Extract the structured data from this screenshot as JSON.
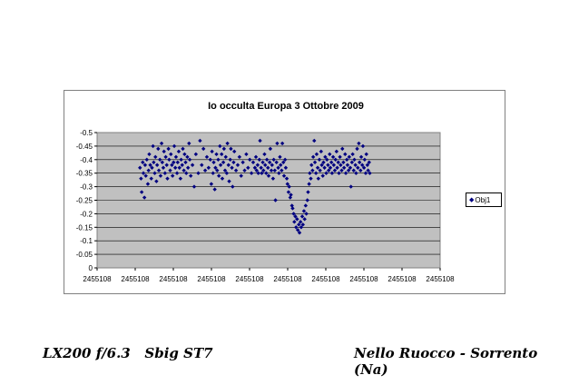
{
  "chart_data": {
    "type": "scatter",
    "title": "Io occulta Europa 3 Ottobre 2009",
    "y_ticks": [
      "-0.5",
      "-0.45",
      "-0.4",
      "-0.35",
      "-0.3",
      "-0.25",
      "-0.2",
      "-0.15",
      "-0.1",
      "-0.05",
      "0"
    ],
    "x_ticks": [
      "2455108",
      "2455108",
      "2455108",
      "2455108",
      "2455108",
      "2455108",
      "2455108",
      "2455108",
      "2455108",
      "2455108"
    ],
    "ylim": [
      -0.5,
      0
    ],
    "xlim": [
      0,
      1
    ],
    "grid": true,
    "legend_position": "right",
    "series": [
      {
        "name": "Obj1",
        "color": "#000080",
        "marker": "diamond",
        "points": [
          [
            0.125,
            -0.37
          ],
          [
            0.128,
            -0.33
          ],
          [
            0.13,
            -0.28
          ],
          [
            0.133,
            -0.39
          ],
          [
            0.135,
            -0.35
          ],
          [
            0.138,
            -0.26
          ],
          [
            0.14,
            -0.38
          ],
          [
            0.142,
            -0.34
          ],
          [
            0.145,
            -0.4
          ],
          [
            0.148,
            -0.31
          ],
          [
            0.15,
            -0.36
          ],
          [
            0.152,
            -0.42
          ],
          [
            0.155,
            -0.38
          ],
          [
            0.158,
            -0.33
          ],
          [
            0.16,
            -0.37
          ],
          [
            0.163,
            -0.45
          ],
          [
            0.165,
            -0.39
          ],
          [
            0.168,
            -0.35
          ],
          [
            0.17,
            -0.41
          ],
          [
            0.173,
            -0.32
          ],
          [
            0.175,
            -0.38
          ],
          [
            0.178,
            -0.44
          ],
          [
            0.18,
            -0.36
          ],
          [
            0.183,
            -0.4
          ],
          [
            0.185,
            -0.34
          ],
          [
            0.188,
            -0.46
          ],
          [
            0.19,
            -0.39
          ],
          [
            0.193,
            -0.37
          ],
          [
            0.195,
            -0.43
          ],
          [
            0.198,
            -0.35
          ],
          [
            0.2,
            -0.41
          ],
          [
            0.203,
            -0.38
          ],
          [
            0.205,
            -0.33
          ],
          [
            0.208,
            -0.44
          ],
          [
            0.21,
            -0.4
          ],
          [
            0.213,
            -0.36
          ],
          [
            0.215,
            -0.42
          ],
          [
            0.218,
            -0.38
          ],
          [
            0.22,
            -0.34
          ],
          [
            0.223,
            -0.39
          ],
          [
            0.225,
            -0.45
          ],
          [
            0.228,
            -0.37
          ],
          [
            0.23,
            -0.41
          ],
          [
            0.233,
            -0.35
          ],
          [
            0.235,
            -0.39
          ],
          [
            0.238,
            -0.43
          ],
          [
            0.24,
            -0.37
          ],
          [
            0.243,
            -0.33
          ],
          [
            0.245,
            -0.4
          ],
          [
            0.248,
            -0.38
          ],
          [
            0.25,
            -0.44
          ],
          [
            0.253,
            -0.36
          ],
          [
            0.255,
            -0.42
          ],
          [
            0.258,
            -0.39
          ],
          [
            0.26,
            -0.35
          ],
          [
            0.263,
            -0.41
          ],
          [
            0.265,
            -0.37
          ],
          [
            0.268,
            -0.46
          ],
          [
            0.27,
            -0.4
          ],
          [
            0.273,
            -0.34
          ],
          [
            0.278,
            -0.38
          ],
          [
            0.283,
            -0.3
          ],
          [
            0.288,
            -0.42
          ],
          [
            0.295,
            -0.35
          ],
          [
            0.3,
            -0.47
          ],
          [
            0.305,
            -0.38
          ],
          [
            0.31,
            -0.44
          ],
          [
            0.315,
            -0.36
          ],
          [
            0.32,
            -0.41
          ],
          [
            0.325,
            -0.37
          ],
          [
            0.33,
            -0.4
          ],
          [
            0.333,
            -0.31
          ],
          [
            0.335,
            -0.43
          ],
          [
            0.338,
            -0.35
          ],
          [
            0.34,
            -0.39
          ],
          [
            0.343,
            -0.29
          ],
          [
            0.345,
            -0.37
          ],
          [
            0.348,
            -0.42
          ],
          [
            0.35,
            -0.36
          ],
          [
            0.353,
            -0.4
          ],
          [
            0.355,
            -0.34
          ],
          [
            0.358,
            -0.45
          ],
          [
            0.36,
            -0.38
          ],
          [
            0.363,
            -0.42
          ],
          [
            0.365,
            -0.33
          ],
          [
            0.368,
            -0.39
          ],
          [
            0.37,
            -0.44
          ],
          [
            0.373,
            -0.36
          ],
          [
            0.375,
            -0.41
          ],
          [
            0.378,
            -0.35
          ],
          [
            0.38,
            -0.46
          ],
          [
            0.383,
            -0.38
          ],
          [
            0.385,
            -0.32
          ],
          [
            0.388,
            -0.4
          ],
          [
            0.39,
            -0.44
          ],
          [
            0.393,
            -0.37
          ],
          [
            0.395,
            -0.3
          ],
          [
            0.398,
            -0.39
          ],
          [
            0.4,
            -0.43
          ],
          [
            0.405,
            -0.36
          ],
          [
            0.41,
            -0.38
          ],
          [
            0.415,
            -0.41
          ],
          [
            0.42,
            -0.34
          ],
          [
            0.425,
            -0.39
          ],
          [
            0.43,
            -0.36
          ],
          [
            0.435,
            -0.42
          ],
          [
            0.44,
            -0.37
          ],
          [
            0.445,
            -0.4
          ],
          [
            0.45,
            -0.35
          ],
          [
            0.455,
            -0.39
          ],
          [
            0.46,
            -0.37
          ],
          [
            0.463,
            -0.41
          ],
          [
            0.465,
            -0.36
          ],
          [
            0.468,
            -0.38
          ],
          [
            0.47,
            -0.35
          ],
          [
            0.473,
            -0.4
          ],
          [
            0.475,
            -0.47
          ],
          [
            0.478,
            -0.37
          ],
          [
            0.48,
            -0.35
          ],
          [
            0.483,
            -0.39
          ],
          [
            0.485,
            -0.36
          ],
          [
            0.488,
            -0.42
          ],
          [
            0.49,
            -0.38
          ],
          [
            0.493,
            -0.35
          ],
          [
            0.495,
            -0.4
          ],
          [
            0.498,
            -0.37
          ],
          [
            0.5,
            -0.34
          ],
          [
            0.503,
            -0.39
          ],
          [
            0.505,
            -0.44
          ],
          [
            0.508,
            -0.36
          ],
          [
            0.51,
            -0.38
          ],
          [
            0.513,
            -0.33
          ],
          [
            0.515,
            -0.4
          ],
          [
            0.518,
            -0.36
          ],
          [
            0.52,
            -0.25
          ],
          [
            0.523,
            -0.39
          ],
          [
            0.525,
            -0.46
          ],
          [
            0.528,
            -0.37
          ],
          [
            0.53,
            -0.35
          ],
          [
            0.533,
            -0.41
          ],
          [
            0.535,
            -0.38
          ],
          [
            0.538,
            -0.36
          ],
          [
            0.54,
            -0.46
          ],
          [
            0.543,
            -0.39
          ],
          [
            0.545,
            -0.34
          ],
          [
            0.548,
            -0.4
          ],
          [
            0.55,
            -0.37
          ],
          [
            0.553,
            -0.33
          ],
          [
            0.555,
            -0.31
          ],
          [
            0.558,
            -0.28
          ],
          [
            0.56,
            -0.3
          ],
          [
            0.563,
            -0.26
          ],
          [
            0.565,
            -0.27
          ],
          [
            0.568,
            -0.23
          ],
          [
            0.57,
            -0.22
          ],
          [
            0.573,
            -0.2
          ],
          [
            0.575,
            -0.17
          ],
          [
            0.578,
            -0.19
          ],
          [
            0.58,
            -0.15
          ],
          [
            0.583,
            -0.18
          ],
          [
            0.585,
            -0.14
          ],
          [
            0.588,
            -0.16
          ],
          [
            0.59,
            -0.13
          ],
          [
            0.593,
            -0.17
          ],
          [
            0.595,
            -0.15
          ],
          [
            0.598,
            -0.19
          ],
          [
            0.6,
            -0.16
          ],
          [
            0.603,
            -0.21
          ],
          [
            0.605,
            -0.18
          ],
          [
            0.608,
            -0.23
          ],
          [
            0.61,
            -0.2
          ],
          [
            0.613,
            -0.25
          ],
          [
            0.615,
            -0.28
          ],
          [
            0.618,
            -0.31
          ],
          [
            0.62,
            -0.35
          ],
          [
            0.623,
            -0.33
          ],
          [
            0.625,
            -0.38
          ],
          [
            0.628,
            -0.36
          ],
          [
            0.63,
            -0.41
          ],
          [
            0.633,
            -0.47
          ],
          [
            0.635,
            -0.39
          ],
          [
            0.638,
            -0.35
          ],
          [
            0.64,
            -0.42
          ],
          [
            0.643,
            -0.37
          ],
          [
            0.645,
            -0.33
          ],
          [
            0.648,
            -0.4
          ],
          [
            0.65,
            -0.36
          ],
          [
            0.653,
            -0.43
          ],
          [
            0.655,
            -0.38
          ],
          [
            0.658,
            -0.34
          ],
          [
            0.66,
            -0.39
          ],
          [
            0.663,
            -0.37
          ],
          [
            0.665,
            -0.41
          ],
          [
            0.668,
            -0.35
          ],
          [
            0.67,
            -0.4
          ],
          [
            0.673,
            -0.38
          ],
          [
            0.675,
            -0.36
          ],
          [
            0.678,
            -0.42
          ],
          [
            0.68,
            -0.37
          ],
          [
            0.683,
            -0.39
          ],
          [
            0.685,
            -0.35
          ],
          [
            0.688,
            -0.41
          ],
          [
            0.69,
            -0.38
          ],
          [
            0.693,
            -0.36
          ],
          [
            0.695,
            -0.4
          ],
          [
            0.698,
            -0.43
          ],
          [
            0.7,
            -0.37
          ],
          [
            0.703,
            -0.39
          ],
          [
            0.705,
            -0.35
          ],
          [
            0.708,
            -0.41
          ],
          [
            0.71,
            -0.38
          ],
          [
            0.713,
            -0.36
          ],
          [
            0.715,
            -0.44
          ],
          [
            0.718,
            -0.39
          ],
          [
            0.72,
            -0.37
          ],
          [
            0.723,
            -0.42
          ],
          [
            0.725,
            -0.35
          ],
          [
            0.728,
            -0.4
          ],
          [
            0.73,
            -0.38
          ],
          [
            0.733,
            -0.36
          ],
          [
            0.735,
            -0.41
          ],
          [
            0.738,
            -0.37
          ],
          [
            0.74,
            -0.3
          ],
          [
            0.743,
            -0.39
          ],
          [
            0.745,
            -0.42
          ],
          [
            0.748,
            -0.36
          ],
          [
            0.75,
            -0.4
          ],
          [
            0.753,
            -0.38
          ],
          [
            0.755,
            -0.35
          ],
          [
            0.758,
            -0.44
          ],
          [
            0.76,
            -0.37
          ],
          [
            0.763,
            -0.46
          ],
          [
            0.765,
            -0.39
          ],
          [
            0.768,
            -0.36
          ],
          [
            0.77,
            -0.41
          ],
          [
            0.773,
            -0.38
          ],
          [
            0.775,
            -0.45
          ],
          [
            0.778,
            -0.37
          ],
          [
            0.78,
            -0.4
          ],
          [
            0.783,
            -0.35
          ],
          [
            0.785,
            -0.42
          ],
          [
            0.788,
            -0.38
          ],
          [
            0.79,
            -0.36
          ],
          [
            0.793,
            -0.39
          ],
          [
            0.795,
            -0.35
          ]
        ]
      }
    ]
  },
  "captions": {
    "left": "LX200 f/6.3   Sbig ST7",
    "right": "Nello Ruocco - Sorrento (Na)"
  },
  "legend": {
    "marker": "◆",
    "label": "Obj1"
  }
}
